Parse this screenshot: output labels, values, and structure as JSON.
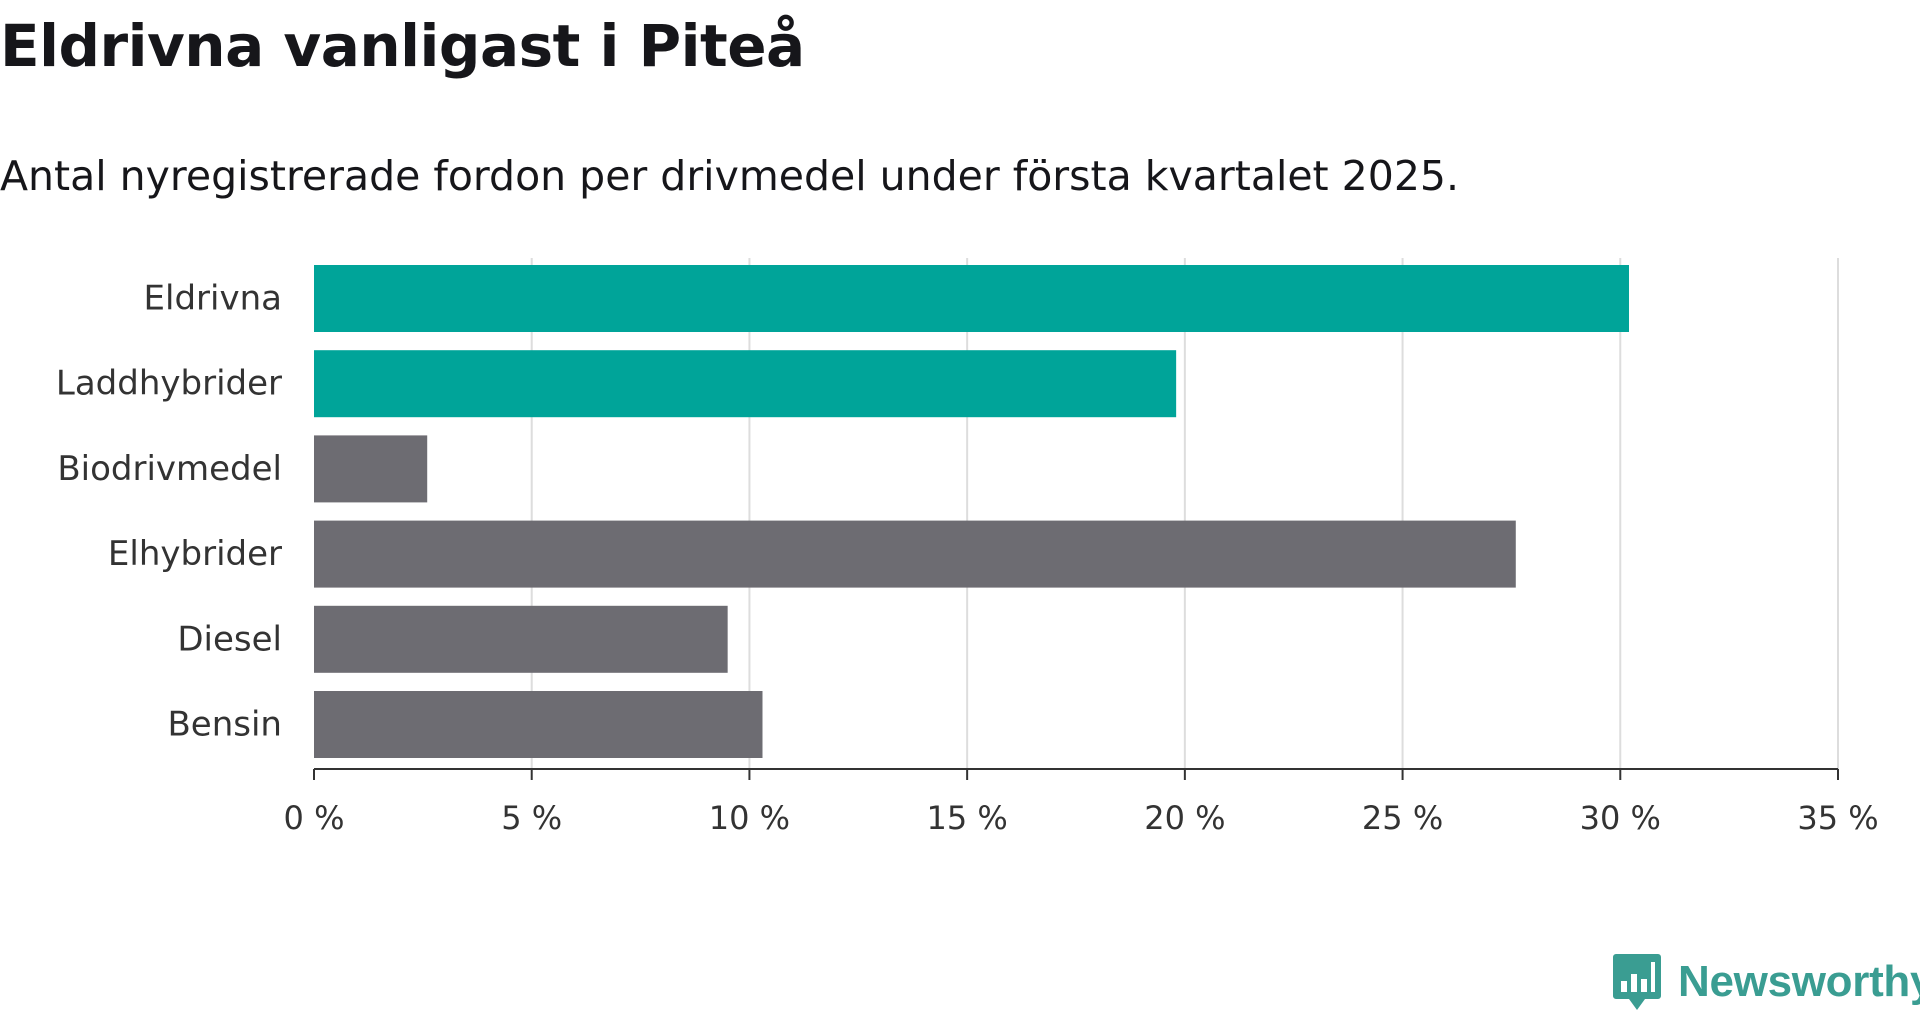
{
  "title": "Eldrivna vanligast i Piteå",
  "subtitle": "Antal nyregistrerade fordon per drivmedel under första kvartalet 2025.",
  "brand": {
    "name": "Newsworthy",
    "icon": "newsworthy-logo-icon",
    "color": "#3a9d92"
  },
  "colors": {
    "highlight": "#00a499",
    "default": "#6d6c72",
    "grid": "#dddddd",
    "axis": "#333333"
  },
  "chart_data": {
    "type": "bar",
    "orientation": "horizontal",
    "categories": [
      "Eldrivna",
      "Laddhybrider",
      "Biodrivmedel",
      "Elhybrider",
      "Diesel",
      "Bensin"
    ],
    "values": [
      30.2,
      19.8,
      2.6,
      27.6,
      9.5,
      10.3
    ],
    "highlighted": [
      true,
      true,
      false,
      false,
      false,
      false
    ],
    "xlim": [
      0,
      35
    ],
    "xticks": [
      0,
      5,
      10,
      15,
      20,
      25,
      30,
      35
    ],
    "xtick_labels": [
      "0 %",
      "5 %",
      "10 %",
      "15 %",
      "20 %",
      "25 %",
      "30 %",
      "35 %"
    ],
    "unit": "%",
    "grid": true
  }
}
